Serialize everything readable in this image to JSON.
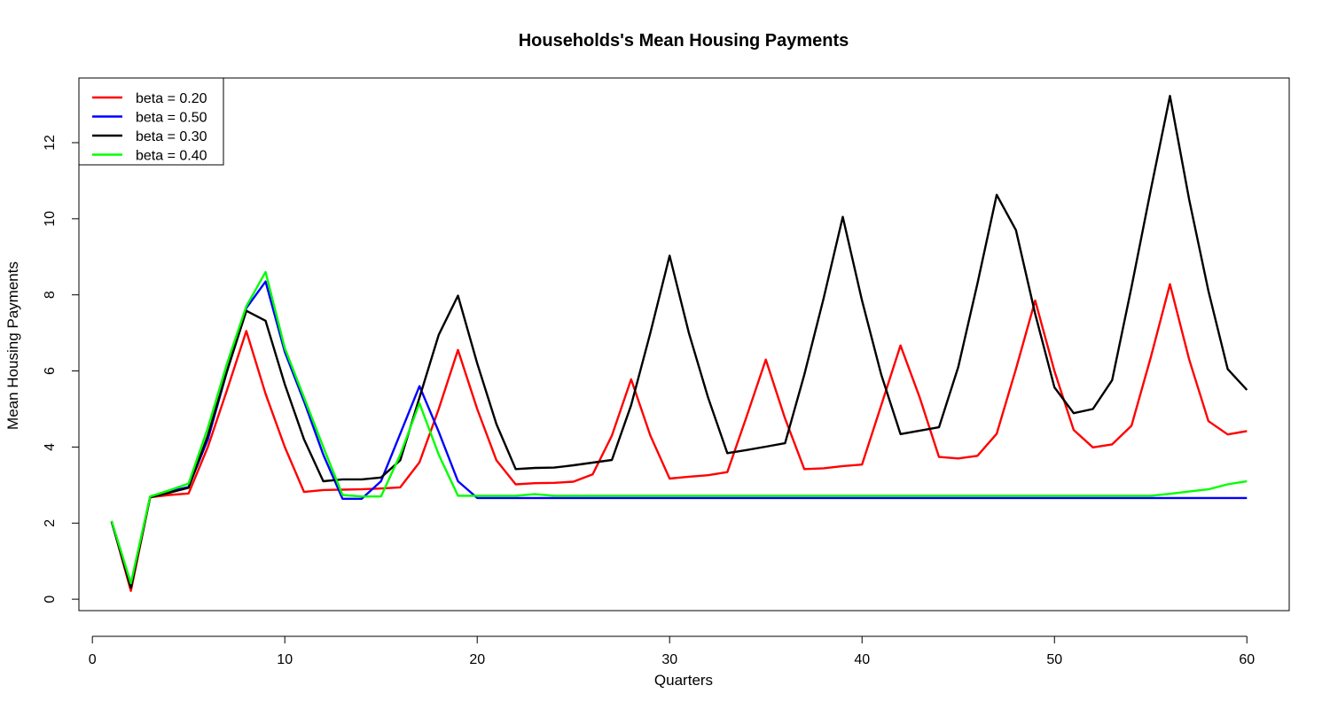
{
  "chart_data": {
    "type": "line",
    "title": "Households's Mean Housing Payments",
    "xlabel": "Quarters",
    "ylabel": "Mean Housing Payments",
    "xlim": [
      -0.7,
      62.2
    ],
    "ylim": [
      -0.3,
      13.7
    ],
    "x_ticks": [
      0,
      10,
      20,
      30,
      40,
      50,
      60
    ],
    "y_ticks": [
      0,
      2,
      4,
      6,
      8,
      10,
      12
    ],
    "grid": false,
    "legend_position": "top-left",
    "x": [
      1,
      2,
      3,
      4,
      5,
      6,
      7,
      8,
      9,
      10,
      11,
      12,
      13,
      14,
      15,
      16,
      17,
      18,
      19,
      20,
      21,
      22,
      23,
      24,
      25,
      26,
      27,
      28,
      29,
      30,
      31,
      32,
      33,
      34,
      35,
      36,
      37,
      38,
      39,
      40,
      41,
      42,
      43,
      44,
      45,
      46,
      47,
      48,
      49,
      50,
      51,
      52,
      53,
      54,
      55,
      56,
      57,
      58,
      59,
      60
    ],
    "series": [
      {
        "name": "beta = 0.20",
        "color": "#ff0000",
        "values": [
          2.05,
          0.22,
          2.68,
          2.74,
          2.78,
          4.0,
          5.5,
          7.05,
          5.4,
          4.0,
          2.82,
          2.87,
          2.88,
          2.89,
          2.91,
          2.94,
          3.6,
          5.0,
          6.55,
          5.0,
          3.65,
          3.02,
          3.05,
          3.06,
          3.09,
          3.28,
          4.3,
          5.78,
          4.3,
          3.17,
          3.22,
          3.26,
          3.34,
          4.8,
          6.3,
          4.75,
          3.42,
          3.44,
          3.5,
          3.54,
          5.1,
          6.67,
          5.3,
          3.74,
          3.7,
          3.77,
          4.35,
          6.05,
          7.85,
          6.0,
          4.45,
          3.99,
          4.07,
          4.56,
          6.35,
          8.28,
          6.3,
          4.68,
          4.33,
          4.42
        ]
      },
      {
        "name": "beta = 0.50",
        "color": "#0000ff",
        "values": [
          2.03,
          0.35,
          2.69,
          2.83,
          2.95,
          4.2,
          6.0,
          7.65,
          8.35,
          6.5,
          5.2,
          3.8,
          2.64,
          2.64,
          3.1,
          4.35,
          5.6,
          4.4,
          3.1,
          2.66,
          2.66,
          2.66,
          2.66,
          2.66,
          2.66,
          2.66,
          2.66,
          2.66,
          2.66,
          2.66,
          2.66,
          2.66,
          2.66,
          2.66,
          2.66,
          2.66,
          2.66,
          2.66,
          2.66,
          2.66,
          2.66,
          2.66,
          2.66,
          2.66,
          2.66,
          2.66,
          2.66,
          2.66,
          2.66,
          2.66,
          2.66,
          2.66,
          2.66,
          2.66,
          2.66,
          2.66,
          2.66,
          2.66,
          2.66,
          2.66
        ]
      },
      {
        "name": "beta = 0.30",
        "color": "#000000",
        "values": [
          2.04,
          0.3,
          2.68,
          2.8,
          2.93,
          4.3,
          6.0,
          7.58,
          7.32,
          5.65,
          4.2,
          3.1,
          3.15,
          3.15,
          3.2,
          3.65,
          5.3,
          6.95,
          7.98,
          6.2,
          4.6,
          3.42,
          3.45,
          3.46,
          3.52,
          3.59,
          3.66,
          5.1,
          7.0,
          9.03,
          7.0,
          5.3,
          3.84,
          3.92,
          4.01,
          4.1,
          5.9,
          7.9,
          10.05,
          7.85,
          5.9,
          4.34,
          4.43,
          4.52,
          6.1,
          8.3,
          10.63,
          9.7,
          7.5,
          5.57,
          4.89,
          5.0,
          5.76,
          8.2,
          10.75,
          13.23,
          10.5,
          8.1,
          6.05,
          5.5
        ]
      },
      {
        "name": "beta = 0.40",
        "color": "#00ff00",
        "values": [
          2.06,
          0.42,
          2.7,
          2.86,
          3.04,
          4.5,
          6.2,
          7.7,
          8.6,
          6.6,
          5.3,
          4.0,
          2.74,
          2.7,
          2.7,
          3.8,
          5.15,
          3.8,
          2.72,
          2.72,
          2.72,
          2.72,
          2.76,
          2.72,
          2.72,
          2.72,
          2.72,
          2.72,
          2.72,
          2.72,
          2.72,
          2.72,
          2.72,
          2.72,
          2.72,
          2.72,
          2.72,
          2.72,
          2.72,
          2.72,
          2.72,
          2.72,
          2.72,
          2.72,
          2.72,
          2.72,
          2.72,
          2.72,
          2.72,
          2.72,
          2.72,
          2.72,
          2.72,
          2.72,
          2.72,
          2.77,
          2.83,
          2.89,
          3.02,
          3.1
        ]
      }
    ]
  }
}
